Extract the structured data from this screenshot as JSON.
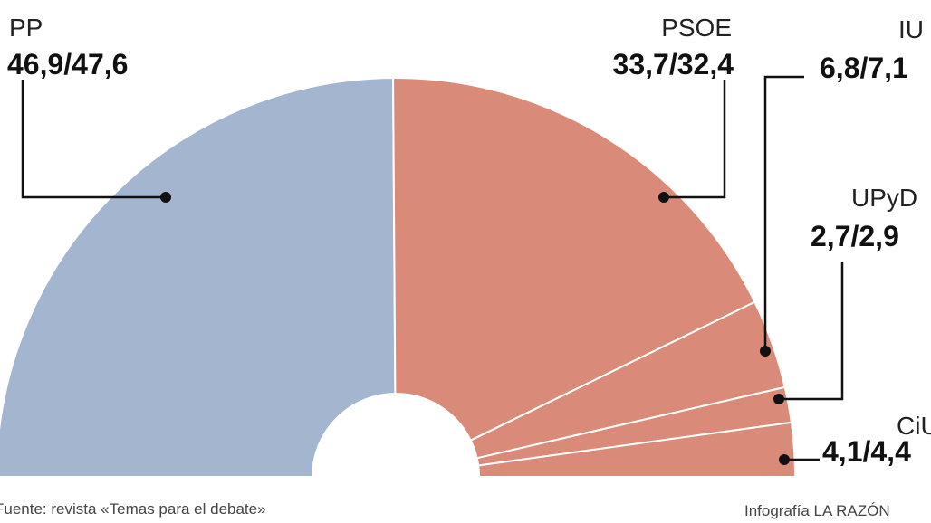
{
  "chart_data": {
    "type": "semicircle",
    "categories": [
      "PP",
      "PSOE",
      "IU",
      "UPyD",
      "CiU"
    ],
    "values": [
      [
        46.9,
        47.6
      ],
      [
        33.7,
        32.4
      ],
      [
        6.8,
        7.1
      ],
      [
        2.7,
        2.9
      ],
      [
        4.1,
        4.4
      ]
    ],
    "value_labels": [
      "46,9/47,6",
      "33,7/32,4",
      "6,8/7,1",
      "2,7/2,9",
      "4,1/4,4"
    ],
    "colors": [
      "#a3b5cf",
      "#d98a78",
      "#d98a78",
      "#d98a78",
      "#d98a78"
    ],
    "source": "Fuente: revista «Temas para el debate»",
    "credit": "Infografía LA RAZÓN"
  }
}
